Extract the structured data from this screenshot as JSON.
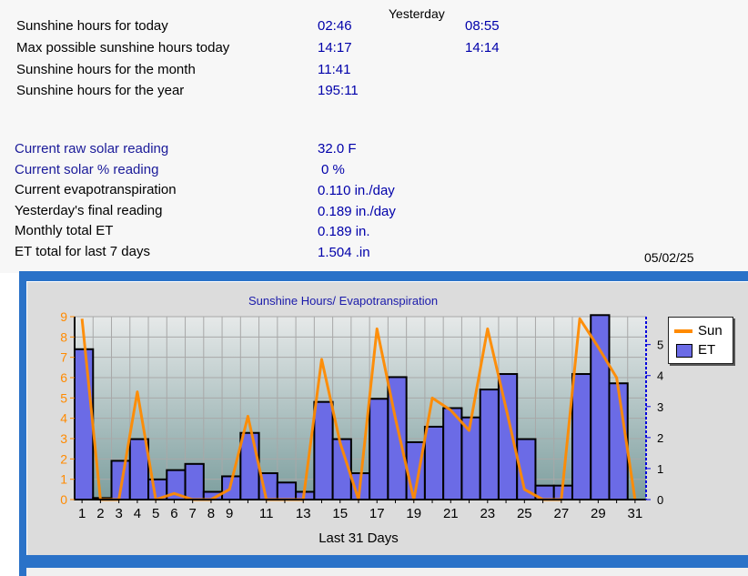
{
  "sunshine": {
    "yesterday_header": "Yesterday",
    "rows": [
      {
        "label": "Sunshine hours for today",
        "value": "02:46",
        "yesterday": "08:55"
      },
      {
        "label": "Max possible sunshine hours today",
        "value": "14:17",
        "yesterday": "14:14"
      },
      {
        "label": "Sunshine hours for the month",
        "value": "11:41",
        "yesterday": ""
      },
      {
        "label": "Sunshine hours for the year",
        "value": "195:11",
        "yesterday": ""
      }
    ]
  },
  "solar": {
    "rows": [
      {
        "label": "Current raw solar reading",
        "value": "32.0 F"
      },
      {
        "label": "Current solar % reading",
        "value": "0 %"
      },
      {
        "label": "Current evapotranspiration",
        "value": "0.110 in./day"
      },
      {
        "label": "Yesterday's final reading",
        "value": "0.189 in./day"
      },
      {
        "label": "Monthly total ET",
        "value": "0.189 in."
      },
      {
        "label": "ET total for last 7 days",
        "value": "1.504 .in"
      }
    ]
  },
  "date": "05/02/25",
  "colors": {
    "sun": "#ff8a00",
    "et": "#6b6be6",
    "frame": "#2a72c8",
    "label_blue": "#1a1a99",
    "value_blue": "#0000aa"
  },
  "chart_data": {
    "type": "bar",
    "title": "Sunshine Hours/ Evapotranspiration",
    "xlabel": "Last 31 Days",
    "x": [
      1,
      2,
      3,
      4,
      5,
      6,
      7,
      8,
      9,
      10,
      11,
      12,
      13,
      14,
      15,
      16,
      17,
      18,
      19,
      20,
      21,
      22,
      23,
      24,
      25,
      26,
      27,
      28,
      29,
      30,
      31
    ],
    "x_tick_labels": [
      "1",
      "2",
      "3",
      "4",
      "5",
      "6",
      "7",
      "8",
      "9",
      "10",
      "11",
      "12",
      "13",
      "14",
      "15",
      "16",
      "17",
      "18",
      "19",
      "20",
      "21",
      "22",
      "23",
      "24",
      "25",
      "26",
      "27",
      "28",
      "29",
      "30",
      "31"
    ],
    "x_ticks_shown": [
      1,
      2,
      3,
      4,
      5,
      6,
      7,
      8,
      9,
      11,
      13,
      15,
      17,
      19,
      21,
      23,
      25,
      27,
      29,
      31
    ],
    "y_left": {
      "range": [
        0,
        9
      ],
      "tick_labels": [
        "0",
        "1",
        "2",
        "3",
        "4",
        "5",
        "6",
        "7",
        "8",
        "9"
      ]
    },
    "y_right": {
      "range": [
        0,
        5.9
      ],
      "tick_labels": [
        "0",
        "1",
        "2",
        "3",
        "4",
        "5"
      ]
    },
    "grid": true,
    "legend": "right",
    "series": [
      {
        "name": "Sun",
        "kind": "line",
        "axis": "left",
        "values": [
          8.9,
          0.0,
          0.0,
          5.3,
          0.0,
          0.3,
          0.0,
          0.0,
          0.5,
          4.1,
          0.0,
          0.0,
          0.0,
          6.9,
          2.8,
          0.0,
          8.4,
          4.0,
          0.0,
          5.0,
          4.4,
          3.4,
          8.4,
          4.5,
          0.5,
          0.0,
          0.0,
          8.9,
          7.5,
          6.0,
          0.0
        ]
      },
      {
        "name": "ET",
        "kind": "bar",
        "axis": "right",
        "values": [
          4.85,
          0.05,
          1.25,
          1.95,
          0.65,
          0.95,
          1.15,
          0.25,
          0.75,
          2.15,
          0.85,
          0.55,
          0.25,
          3.15,
          1.95,
          0.85,
          3.25,
          3.95,
          1.85,
          2.35,
          2.95,
          2.65,
          3.55,
          4.05,
          1.95,
          0.45,
          0.45,
          4.05,
          5.95,
          3.75,
          0.0
        ]
      }
    ]
  }
}
